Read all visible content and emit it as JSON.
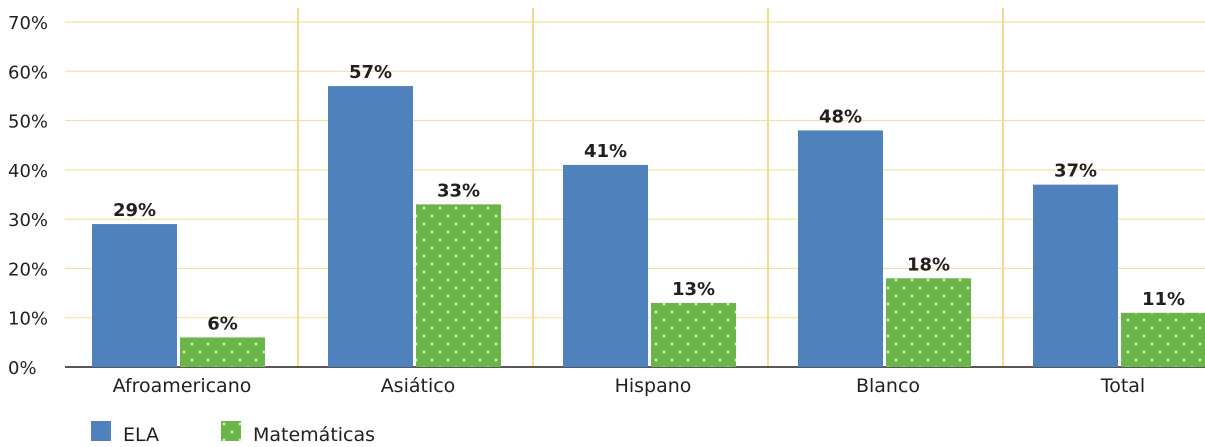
{
  "chart_data": {
    "type": "bar",
    "categories": [
      "Afroamericano",
      "Asiático",
      "Hispano",
      "Blanco",
      "Total"
    ],
    "series": [
      {
        "name": "ELA",
        "values": [
          29,
          57,
          41,
          48,
          37
        ],
        "labels": [
          "29%",
          "57%",
          "41%",
          "48%",
          "37%"
        ],
        "color": "#4f81bd"
      },
      {
        "name": "Matemáticas",
        "values": [
          6,
          33,
          13,
          18,
          11
        ],
        "labels": [
          "6%",
          "33%",
          "13%",
          "18%",
          "11%"
        ],
        "color": "#6ab547",
        "pattern_background": "#d6ebc8"
      }
    ],
    "ylim": [
      0,
      70
    ],
    "yticks": [
      0,
      10,
      20,
      30,
      40,
      50,
      60,
      70
    ],
    "ytick_labels": [
      "0%",
      "10%",
      "20%",
      "30%",
      "40%",
      "50%",
      "60%",
      "70%"
    ],
    "grid": true,
    "gridline_color": "#f1dd8d",
    "legend_position": "bottom-left",
    "title": "",
    "xlabel": "",
    "ylabel": ""
  }
}
